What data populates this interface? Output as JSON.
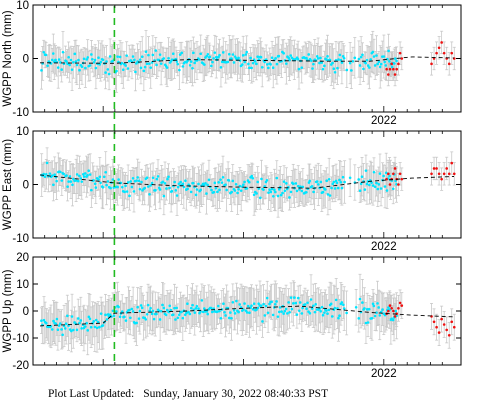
{
  "footer": {
    "label": "Plot Last Updated:",
    "timestamp": "Sunday, January 30, 2022 08:40:33 PST"
  },
  "colors": {
    "primary_points": "#00e5ff",
    "recent_points": "#ee1111",
    "error_bars": "#c8c8c8",
    "trend_line": "#000000",
    "event_line": "#22bb22"
  },
  "chart_data": [
    {
      "type": "scatter",
      "title": "",
      "ylabel": "WGPP North (mm)",
      "ylim": [
        -10,
        10
      ],
      "yticks": [
        -10,
        0,
        10
      ],
      "xlabel_tick": "2022",
      "x_range": [
        2019.5,
        2022.55
      ],
      "event_x": 2020.08,
      "trend": [
        [
          2019.55,
          -0.8
        ],
        [
          2020.08,
          -0.9
        ],
        [
          2020.6,
          -0.2
        ],
        [
          2021.2,
          -0.4
        ],
        [
          2021.6,
          -0.5
        ],
        [
          2021.9,
          -0.5
        ],
        [
          2022.2,
          0.3
        ],
        [
          2022.5,
          0.1
        ]
      ],
      "recent_values": [
        -2,
        -3,
        -2,
        -1,
        -2,
        -3,
        -2,
        -1,
        1,
        0,
        -1,
        0,
        1,
        2,
        3,
        1,
        0,
        -1,
        1,
        0
      ],
      "error_bar_half_range_mm": 3.5
    },
    {
      "type": "scatter",
      "title": "",
      "ylabel": "WGPP East (mm)",
      "ylim": [
        -10,
        10
      ],
      "yticks": [
        -10,
        0,
        10
      ],
      "xlabel_tick": "2022",
      "x_range": [
        2019.5,
        2022.55
      ],
      "event_x": 2020.08,
      "trend": [
        [
          2019.55,
          1.8
        ],
        [
          2020.08,
          0.3
        ],
        [
          2020.5,
          -0.2
        ],
        [
          2021.0,
          -0.5
        ],
        [
          2021.5,
          -0.7
        ],
        [
          2021.9,
          0.6
        ],
        [
          2022.2,
          1.2
        ],
        [
          2022.5,
          1.5
        ]
      ],
      "recent_values": [
        1,
        2,
        0,
        1,
        2,
        3,
        1,
        0,
        2,
        1,
        2,
        3,
        3,
        2,
        1,
        2,
        3,
        2,
        4,
        2
      ],
      "error_bar_half_range_mm": 3.5
    },
    {
      "type": "scatter",
      "title": "",
      "ylabel": "WGPP Up (mm)",
      "ylim": [
        -20,
        20
      ],
      "yticks": [
        -20,
        -10,
        0,
        10,
        20
      ],
      "xlabel_tick": "2022",
      "x_range": [
        2019.5,
        2022.55
      ],
      "event_x": 2020.08,
      "trend": [
        [
          2019.55,
          -5.5
        ],
        [
          2020.0,
          -4.5
        ],
        [
          2020.08,
          -0.8
        ],
        [
          2020.6,
          0
        ],
        [
          2021.0,
          1.0
        ],
        [
          2021.4,
          1.8
        ],
        [
          2021.9,
          -0.5
        ],
        [
          2022.2,
          -1.5
        ],
        [
          2022.5,
          -2.2
        ]
      ],
      "recent_values": [
        -1,
        0,
        2,
        1,
        0,
        -2,
        -1,
        1,
        3,
        2,
        -2,
        -4,
        -6,
        -8,
        -3,
        -5,
        -7,
        -9,
        -4,
        -6
      ],
      "error_bar_half_range_mm": 8
    }
  ]
}
